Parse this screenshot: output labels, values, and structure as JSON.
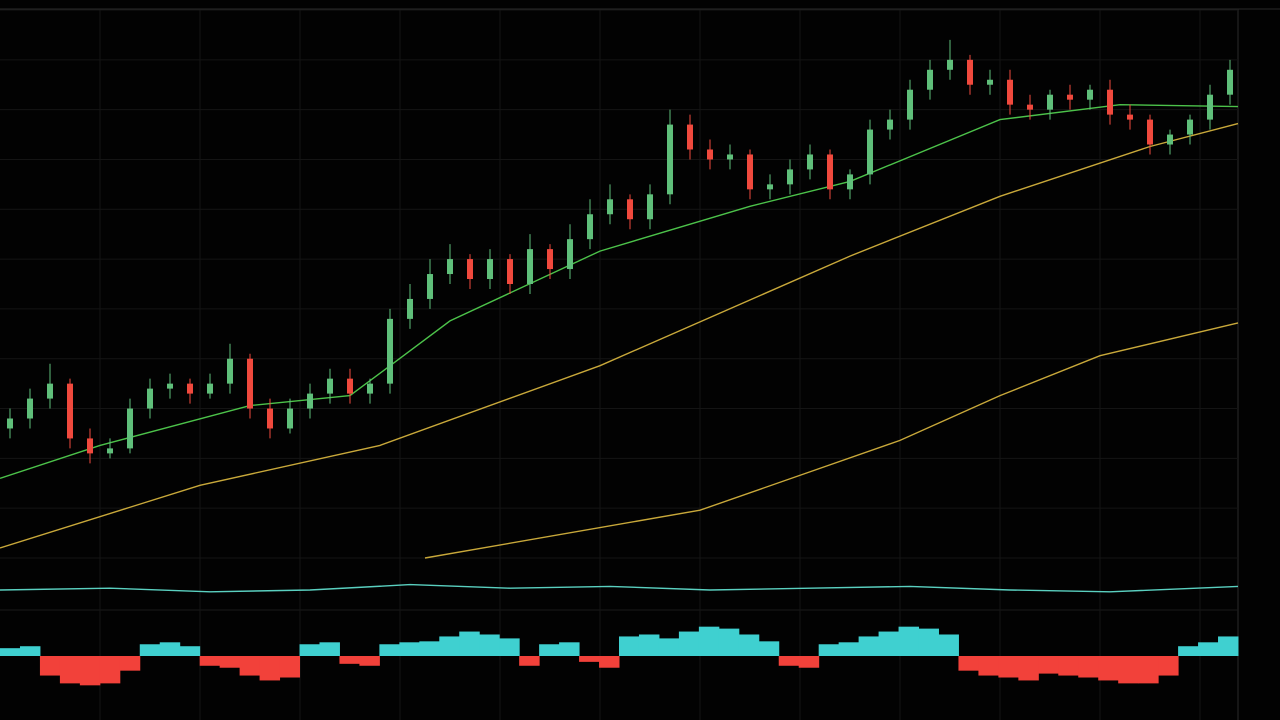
{
  "chart_data": [
    {
      "type": "candlestick",
      "x": [
        0,
        1,
        2,
        3,
        4,
        5,
        6,
        7,
        8,
        9,
        10,
        11,
        12,
        13,
        14,
        15,
        16,
        17,
        18,
        19,
        20,
        21,
        22,
        23,
        24,
        25,
        26,
        27,
        28,
        29,
        30,
        31,
        32,
        33,
        34,
        35,
        36,
        37,
        38,
        39,
        40,
        41,
        42,
        43,
        44,
        45,
        46,
        47,
        48,
        49,
        50,
        51,
        52,
        53,
        54,
        55,
        56,
        57,
        58,
        59,
        60,
        61
      ],
      "open": [
        130,
        140,
        160,
        175,
        120,
        105,
        110,
        150,
        170,
        175,
        165,
        175,
        200,
        150,
        130,
        150,
        165,
        180,
        165,
        175,
        240,
        260,
        285,
        300,
        280,
        300,
        275,
        310,
        290,
        320,
        345,
        360,
        340,
        365,
        435,
        410,
        400,
        405,
        370,
        375,
        390,
        405,
        370,
        385,
        430,
        440,
        470,
        490,
        500,
        475,
        480,
        455,
        450,
        465,
        460,
        470,
        445,
        440,
        415,
        425,
        440,
        465
      ],
      "high": [
        150,
        170,
        195,
        180,
        130,
        120,
        160,
        180,
        185,
        180,
        185,
        215,
        205,
        160,
        160,
        175,
        190,
        190,
        180,
        250,
        275,
        300,
        315,
        305,
        310,
        305,
        325,
        315,
        335,
        360,
        375,
        365,
        375,
        450,
        445,
        420,
        415,
        410,
        385,
        400,
        415,
        410,
        390,
        440,
        450,
        480,
        500,
        520,
        505,
        490,
        490,
        465,
        470,
        475,
        475,
        480,
        455,
        445,
        430,
        445,
        475,
        500
      ],
      "low": [
        120,
        130,
        150,
        110,
        95,
        100,
        105,
        140,
        160,
        155,
        160,
        165,
        140,
        120,
        125,
        140,
        155,
        155,
        155,
        165,
        230,
        250,
        275,
        270,
        270,
        265,
        265,
        280,
        280,
        310,
        335,
        330,
        330,
        355,
        400,
        390,
        390,
        360,
        360,
        365,
        380,
        360,
        360,
        375,
        420,
        430,
        460,
        480,
        465,
        465,
        445,
        440,
        440,
        450,
        450,
        435,
        430,
        405,
        405,
        415,
        430,
        455
      ],
      "close": [
        140,
        160,
        175,
        120,
        105,
        110,
        150,
        170,
        175,
        165,
        175,
        200,
        150,
        130,
        150,
        165,
        180,
        165,
        175,
        240,
        260,
        285,
        300,
        280,
        300,
        275,
        310,
        290,
        320,
        345,
        360,
        340,
        365,
        435,
        410,
        400,
        405,
        370,
        375,
        390,
        405,
        370,
        385,
        430,
        440,
        470,
        490,
        500,
        475,
        480,
        455,
        450,
        465,
        460,
        470,
        445,
        440,
        415,
        425,
        440,
        465,
        490
      ],
      "up_color": "#5fbf7a",
      "down_color": "#f0493d",
      "ylim": [
        0,
        550
      ],
      "yticks": [
        0,
        50,
        100,
        150,
        200,
        250,
        300,
        350,
        400,
        450,
        500,
        550
      ],
      "xlim": [
        -0.5,
        61.4
      ],
      "xticks": [
        4.5,
        9.5,
        14.5,
        19.5,
        24.5,
        29.5,
        34.5,
        39.5,
        44.5,
        49.5,
        54.5,
        59.5
      ],
      "grid": true,
      "lines": [
        {
          "color": "#4cc24a",
          "x": [
            -0.5,
            4.5,
            12,
            17,
            22,
            29.5,
            37,
            42,
            49.5,
            55.5,
            61.4
          ],
          "values": [
            80,
            113,
            153,
            163,
            238,
            308,
            353,
            378,
            440,
            455,
            453
          ]
        },
        {
          "color": "#c8a83a",
          "x": [
            -0.5,
            9.5,
            18.5,
            29.5,
            42,
            49.5,
            57,
            61.4
          ],
          "values": [
            10,
            73,
            113,
            193,
            303,
            363,
            413,
            436
          ]
        },
        {
          "color": "#c8a83a",
          "x": [
            20.75,
            34.5,
            44.5,
            49.5,
            54.5,
            61.4
          ],
          "values": [
            0,
            48,
            118,
            163,
            203,
            236
          ]
        }
      ]
    },
    {
      "type": "line",
      "color": "#5ad0c0",
      "ylim": [
        -10,
        10
      ],
      "xlim": [
        -0.5,
        61.4
      ],
      "x": [
        -0.5,
        5,
        10,
        15,
        20,
        25,
        30,
        35,
        40,
        45,
        50,
        55,
        61.4
      ],
      "values": [
        0,
        1,
        -1,
        0,
        3,
        1,
        2,
        0,
        1,
        2,
        0,
        -1,
        2
      ]
    },
    {
      "type": "bar",
      "up_color": "#3fd0d0",
      "down_color": "#f2413a",
      "ylim": [
        -45,
        45
      ],
      "xlim": [
        -0.5,
        61.4
      ],
      "values": [
        8,
        10,
        -20,
        -28,
        -30,
        -28,
        -15,
        12,
        14,
        10,
        -10,
        -12,
        -20,
        -25,
        -22,
        12,
        14,
        -8,
        -10,
        12,
        14,
        15,
        20,
        25,
        22,
        18,
        -10,
        12,
        14,
        -6,
        -12,
        20,
        22,
        18,
        25,
        30,
        28,
        22,
        15,
        -10,
        -12,
        12,
        14,
        20,
        25,
        30,
        28,
        22,
        -15,
        -20,
        -22,
        -25,
        -18,
        -20,
        -22,
        -25,
        -28,
        -28,
        -20,
        10,
        14,
        20
      ]
    }
  ]
}
